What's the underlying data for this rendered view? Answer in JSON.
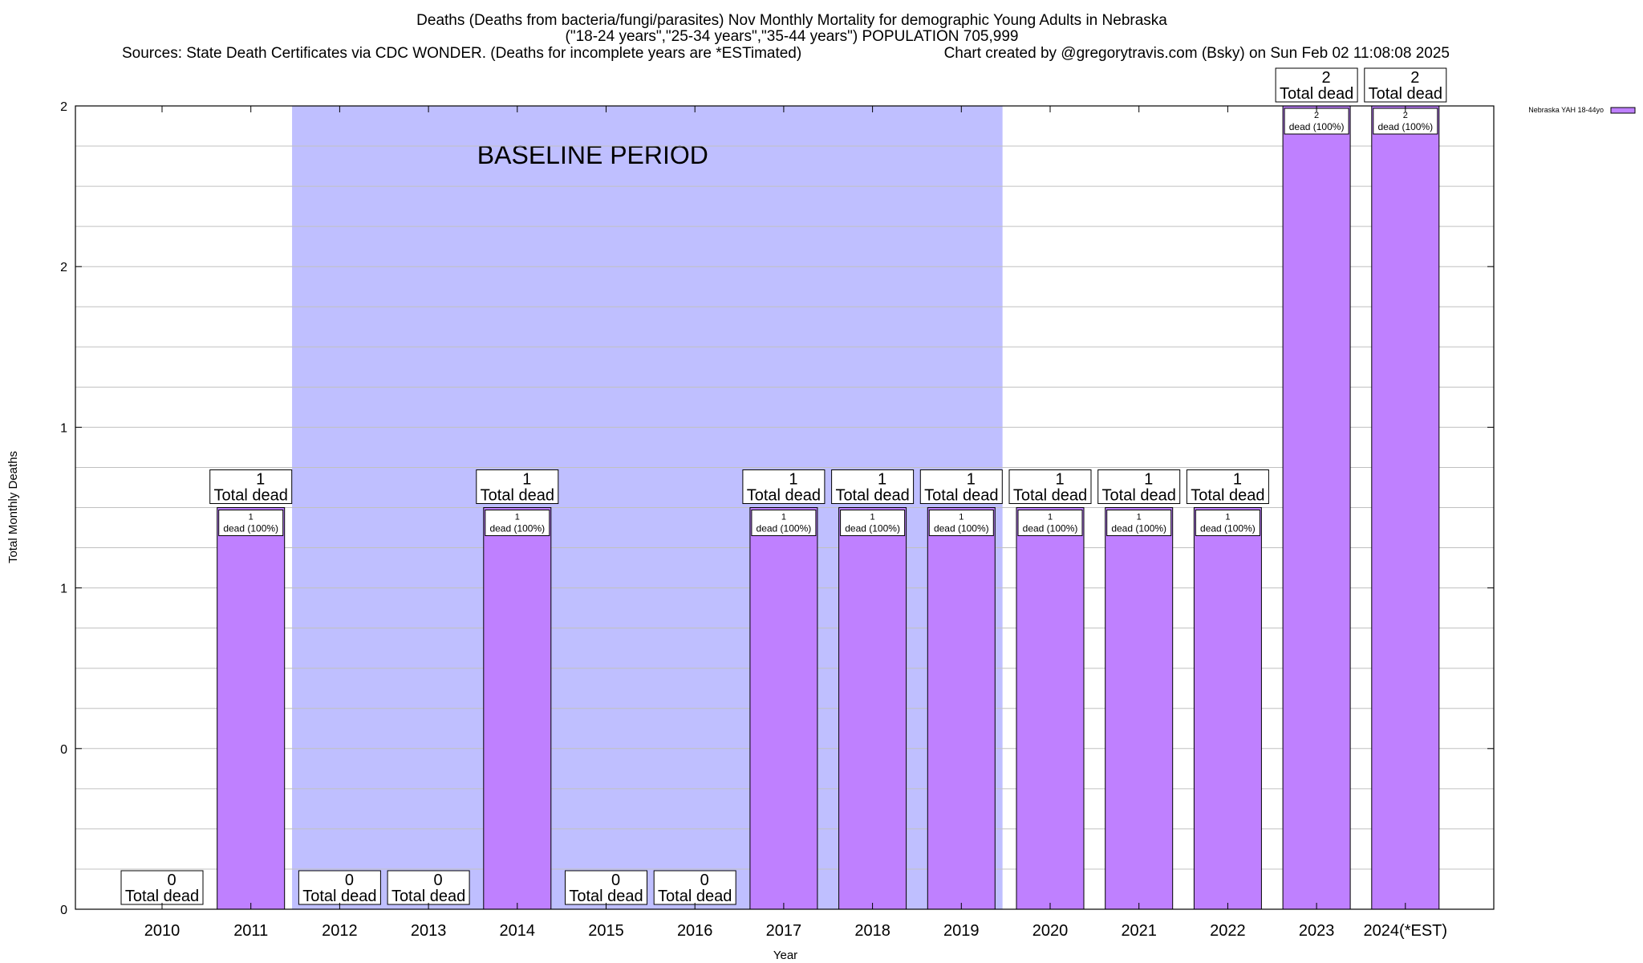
{
  "chart_data": {
    "type": "bar",
    "title_lines": [
      "Deaths (Deaths from bacteria/fungi/parasites) Nov Monthly Mortality for demographic Young Adults in Nebraska",
      "(\"18-24 years\",\"25-34 years\",\"35-44 years\") POPULATION 705,999"
    ],
    "source": "Sources: State Death Certificates via CDC WONDER. (Deaths for incomplete years are *ESTimated)",
    "credit": "Chart created by @gregorytravis.com (Bsky) on Sun Feb 02 11:08:08 2025",
    "xlabel": "Year",
    "ylabel": "Total Monthly Deaths",
    "ylim": [
      0,
      2
    ],
    "y_tick_labels": [
      "0",
      "0",
      "1",
      "1",
      "2",
      "2"
    ],
    "y_tick_values": [
      0,
      0.5,
      1,
      1.5,
      2,
      2.5
    ],
    "grid": true,
    "legend_position": "top-right",
    "baseline_period": {
      "label": "BASELINE PERIOD",
      "start": "2012",
      "end": "2019"
    },
    "categories": [
      "2010",
      "2011",
      "2012",
      "2013",
      "2014",
      "2015",
      "2016",
      "2017",
      "2018",
      "2019",
      "2020",
      "2021",
      "2022",
      "2023",
      "2024(*EST)"
    ],
    "series": [
      {
        "name": "Nebraska YAH 18-44yo",
        "color": "#bf80ff",
        "values": [
          0,
          1,
          0,
          0,
          1,
          0,
          0,
          1,
          1,
          1,
          1,
          1,
          1,
          2,
          2
        ]
      }
    ],
    "total_label_text": "Total dead",
    "inner_label_text": "dead (100%)",
    "colors": {
      "bar": "#bf80ff",
      "baseline_shade": "#bfbfff",
      "grid": "#c0c0c0"
    }
  }
}
